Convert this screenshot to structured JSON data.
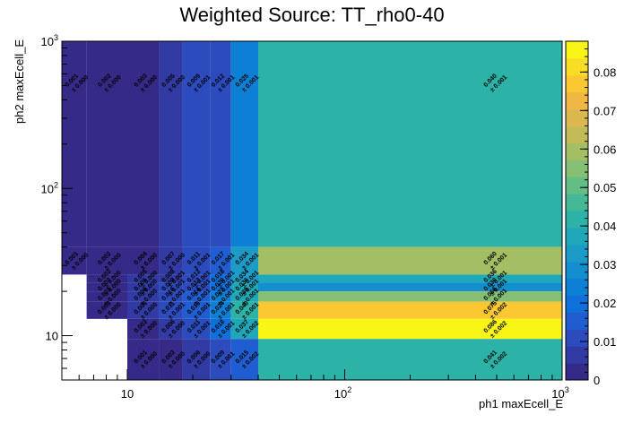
{
  "chart_data": {
    "type": "heatmap",
    "title": "Weighted Source: TT_rho0-40",
    "xlabel": "ph1 maxEcell_E",
    "ylabel": "ph2 maxEcell_E",
    "x_scale": "log",
    "y_scale": "log",
    "xlim": [
      5,
      1000
    ],
    "ylim": [
      5,
      1000
    ],
    "x_ticks": [
      {
        "value": 10,
        "label": "10"
      },
      {
        "value": 100,
        "label": "10",
        "exp": "2"
      },
      {
        "value": 1000,
        "label": "10",
        "exp": "3"
      }
    ],
    "y_ticks": [
      {
        "value": 10,
        "label": "10"
      },
      {
        "value": 100,
        "label": "10",
        "exp": "2"
      },
      {
        "value": 1000,
        "label": "10",
        "exp": "3"
      }
    ],
    "x_bins": [
      5,
      6.5,
      10,
      14,
      18,
      24,
      30,
      40,
      1000
    ],
    "y_bins": [
      5,
      9.5,
      13,
      17,
      20,
      23,
      26,
      40,
      1000
    ],
    "zlim": [
      0,
      0.088
    ],
    "z_ticks": [
      "0",
      "0.01",
      "0.02",
      "0.03",
      "0.04",
      "0.05",
      "0.06",
      "0.07",
      "0.08"
    ],
    "z_tick_values": [
      0,
      0.01,
      0.02,
      0.03,
      0.04,
      0.05,
      0.06,
      0.07,
      0.08
    ],
    "palette": [
      "#352a87",
      "#323aa3",
      "#2c4bbd",
      "#1f5dd0",
      "#0f6fdb",
      "#0d80d6",
      "#138fcf",
      "#1a9cc6",
      "#20a8b8",
      "#2db2a8",
      "#45b996",
      "#62be84",
      "#84bf73",
      "#a4be63",
      "#c2bb58",
      "#dbb84e",
      "#f0b842",
      "#fcc832",
      "#f9dc24",
      "#f9f516"
    ],
    "cells": [
      {
        "x": 0,
        "y": 7,
        "value": 0.001,
        "label": "0.001",
        "error": "± 0.000"
      },
      {
        "x": 1,
        "y": 7,
        "value": 0.002,
        "label": "0.002",
        "error": "± 0.000"
      },
      {
        "x": 2,
        "y": 7,
        "value": 0.003,
        "label": "0.003",
        "error": "± 0.000"
      },
      {
        "x": 3,
        "y": 7,
        "value": 0.005,
        "label": "0.005",
        "error": "± 0.000"
      },
      {
        "x": 4,
        "y": 7,
        "value": 0.009,
        "label": "0.009",
        "error": "± 0.001"
      },
      {
        "x": 5,
        "y": 7,
        "value": 0.012,
        "label": "0.012",
        "error": "± 0.001"
      },
      {
        "x": 6,
        "y": 7,
        "value": 0.025,
        "label": "0.025",
        "error": "± 0.001"
      },
      {
        "x": 7,
        "y": 7,
        "value": 0.04,
        "label": "0.040",
        "error": "± 0.001"
      },
      {
        "x": 0,
        "y": 6,
        "value": 0.001,
        "label": "0.001",
        "error": "± 0.000"
      },
      {
        "x": 1,
        "y": 6,
        "value": 0.002,
        "label": "0.002",
        "error": "± 0.000"
      },
      {
        "x": 2,
        "y": 6,
        "value": 0.004,
        "label": "0.004",
        "error": "± 0.000"
      },
      {
        "x": 3,
        "y": 6,
        "value": 0.007,
        "label": "0.007",
        "error": "± 0.000"
      },
      {
        "x": 4,
        "y": 6,
        "value": 0.011,
        "label": "0.011",
        "error": "± 0.001"
      },
      {
        "x": 5,
        "y": 6,
        "value": 0.017,
        "label": "0.017",
        "error": "± 0.001"
      },
      {
        "x": 6,
        "y": 6,
        "value": 0.034,
        "label": "0.034",
        "error": "± 0.001"
      },
      {
        "x": 7,
        "y": 6,
        "value": 0.06,
        "label": "0.060",
        "error": "± 0.001"
      },
      {
        "x": 1,
        "y": 5,
        "value": 0.002,
        "label": "0.002",
        "error": "± 0.000"
      },
      {
        "x": 2,
        "y": 5,
        "value": 0.005,
        "label": "0.005",
        "error": "± 0.000"
      },
      {
        "x": 3,
        "y": 5,
        "value": 0.008,
        "label": "0.008",
        "error": "± 0.001"
      },
      {
        "x": 4,
        "y": 5,
        "value": 0.012,
        "label": "0.012",
        "error": "± 0.001"
      },
      {
        "x": 5,
        "y": 5,
        "value": 0.018,
        "label": "0.018",
        "error": "± 0.001"
      },
      {
        "x": 6,
        "y": 5,
        "value": 0.034,
        "label": "0.034",
        "error": "± 0.001"
      },
      {
        "x": 7,
        "y": 5,
        "value": 0.036,
        "label": "0.036",
        "error": "± 0.001"
      },
      {
        "x": 1,
        "y": 4,
        "value": 0.002,
        "label": "0.002",
        "error": "± 0.000"
      },
      {
        "x": 2,
        "y": 4,
        "value": 0.005,
        "label": "0.005",
        "error": "± 0.000"
      },
      {
        "x": 3,
        "y": 4,
        "value": 0.009,
        "label": "0.009",
        "error": "± 0.001"
      },
      {
        "x": 4,
        "y": 4,
        "value": 0.013,
        "label": "0.013",
        "error": "± 0.001"
      },
      {
        "x": 5,
        "y": 4,
        "value": 0.02,
        "label": "0.020",
        "error": "± 0.001"
      },
      {
        "x": 6,
        "y": 4,
        "value": 0.036,
        "label": "0.036",
        "error": "± 0.001"
      },
      {
        "x": 7,
        "y": 4,
        "value": 0.03,
        "label": "0.030",
        "error": "± 0.001"
      },
      {
        "x": 1,
        "y": 3,
        "value": 0.003,
        "label": "0.003",
        "error": "± 0.000"
      },
      {
        "x": 2,
        "y": 3,
        "value": 0.006,
        "label": "0.006",
        "error": "± 0.000"
      },
      {
        "x": 3,
        "y": 3,
        "value": 0.01,
        "label": "0.010",
        "error": "± 0.001"
      },
      {
        "x": 4,
        "y": 3,
        "value": 0.014,
        "label": "0.014",
        "error": "± 0.001"
      },
      {
        "x": 5,
        "y": 3,
        "value": 0.022,
        "label": "0.022",
        "error": "± 0.001"
      },
      {
        "x": 6,
        "y": 3,
        "value": 0.038,
        "label": "0.038",
        "error": "± 0.001"
      },
      {
        "x": 7,
        "y": 3,
        "value": 0.056,
        "label": "0.056",
        "error": "± 0.001"
      },
      {
        "x": 1,
        "y": 2,
        "value": 0.003,
        "label": "0.003",
        "error": "± 0.000"
      },
      {
        "x": 2,
        "y": 2,
        "value": 0.006,
        "label": "0.006",
        "error": "± 0.000"
      },
      {
        "x": 3,
        "y": 2,
        "value": 0.011,
        "label": "0.011",
        "error": "± 0.001"
      },
      {
        "x": 4,
        "y": 2,
        "value": 0.016,
        "label": "0.016",
        "error": "± 0.001"
      },
      {
        "x": 5,
        "y": 2,
        "value": 0.024,
        "label": "0.024",
        "error": "± 0.001"
      },
      {
        "x": 6,
        "y": 2,
        "value": 0.04,
        "label": "0.040",
        "error": "± 0.001"
      },
      {
        "x": 7,
        "y": 2,
        "value": 0.075,
        "label": "0.075",
        "error": "± 0.002"
      },
      {
        "x": 2,
        "y": 1,
        "value": 0.003,
        "label": "0.003",
        "error": "± 0.000"
      },
      {
        "x": 3,
        "y": 1,
        "value": 0.006,
        "label": "0.006",
        "error": "± 0.000"
      },
      {
        "x": 4,
        "y": 1,
        "value": 0.011,
        "label": "0.011",
        "error": "± 0.001"
      },
      {
        "x": 5,
        "y": 1,
        "value": 0.018,
        "label": "0.018",
        "error": "± 0.001"
      },
      {
        "x": 6,
        "y": 1,
        "value": 0.037,
        "label": "0.037",
        "error": "± 0.002"
      },
      {
        "x": 7,
        "y": 1,
        "value": 0.086,
        "label": "0.086",
        "error": "± 0.002"
      },
      {
        "x": 2,
        "y": 0,
        "value": 0.001,
        "label": "0.001",
        "error": "± 0.000"
      },
      {
        "x": 3,
        "y": 0,
        "value": 0.003,
        "label": "0.003",
        "error": "± 0.000"
      },
      {
        "x": 4,
        "y": 0,
        "value": 0.006,
        "label": "0.006",
        "error": "± 0.000"
      },
      {
        "x": 5,
        "y": 0,
        "value": 0.009,
        "label": "0.009",
        "error": "± 0.001"
      },
      {
        "x": 6,
        "y": 0,
        "value": 0.015,
        "label": "0.015",
        "error": "± 0.002"
      },
      {
        "x": 7,
        "y": 0,
        "value": 0.041,
        "label": "0.041",
        "error": "± 0.002"
      }
    ]
  }
}
